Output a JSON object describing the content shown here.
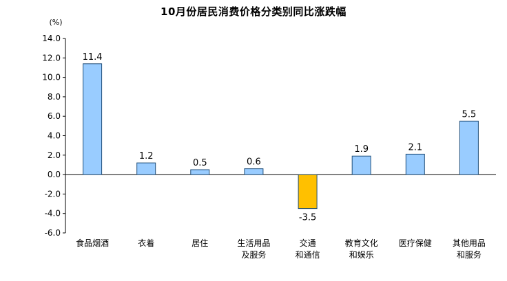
{
  "chart_data": {
    "type": "bar",
    "title": "10月份居民消费价格分类别同比涨跌幅",
    "ylabel": "(%)",
    "xlabel": "",
    "ylim": [
      -6.0,
      14.0
    ],
    "y_ticks": [
      "14.0",
      "12.0",
      "10.0",
      "8.0",
      "6.0",
      "4.0",
      "2.0",
      "0.0",
      "-2.0",
      "-4.0",
      "-6.0"
    ],
    "y_tick_values": [
      14,
      12,
      10,
      8,
      6,
      4,
      2,
      0,
      -2,
      -4,
      -6
    ],
    "categories": [
      [
        "食品烟酒"
      ],
      [
        "衣着"
      ],
      [
        "居住"
      ],
      [
        "生活用品",
        "及服务"
      ],
      [
        "交通",
        "和通信"
      ],
      [
        "教育文化",
        "和娱乐"
      ],
      [
        "医疗保健"
      ],
      [
        "其他用品",
        "和服务"
      ]
    ],
    "values": [
      11.4,
      1.2,
      0.5,
      0.6,
      -3.5,
      1.9,
      2.1,
      5.5
    ],
    "value_labels": [
      "11.4",
      "1.2",
      "0.5",
      "0.6",
      "-3.5",
      "1.9",
      "2.1",
      "5.5"
    ],
    "colors": {
      "positive_fill": "#99ccff",
      "negative_fill": "#ffc000",
      "bar_stroke": "#1f4e79",
      "axis": "#000000"
    },
    "grid": false,
    "legend": "none"
  }
}
